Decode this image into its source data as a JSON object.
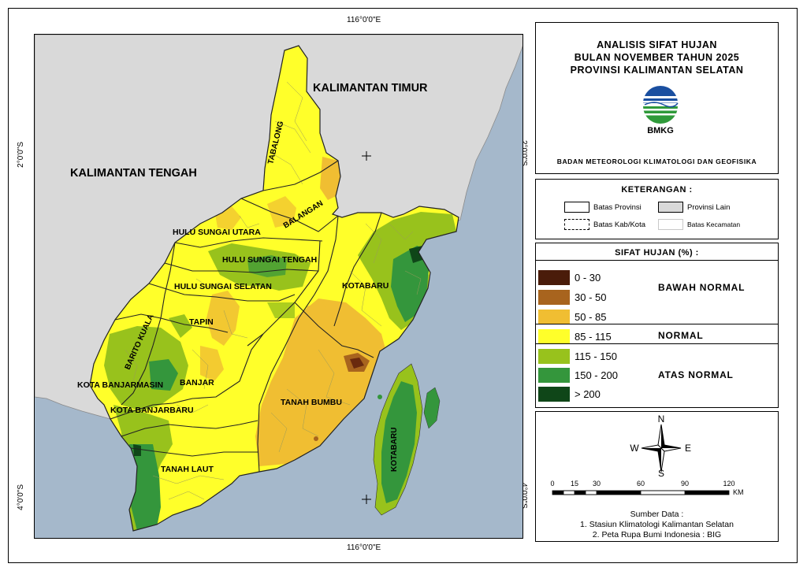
{
  "coords": {
    "top_lon": "116°0'0\"E",
    "bottom_lon": "116°0'0\"E",
    "left_lat_top": "2°0'0\"S",
    "left_lat_bottom": "4°0'0\"S",
    "right_lat_top": "2°0'0\"S",
    "right_lat_bottom": "4°0'0\"S"
  },
  "map": {
    "regions_outside": [
      "KALIMANTAN TIMUR",
      "KALIMANTAN TENGAH"
    ],
    "regencies": {
      "tabalong": "TABALONG",
      "balangan": "BALANGAN",
      "hulu_sungai_utara": "HULU SUNGAI UTARA",
      "hulu_sungai_tengah": "HULU SUNGAI TENGAH",
      "hulu_sungai_selatan": "HULU SUNGAI SELATAN",
      "tapin": "TAPIN",
      "barito_kuala": "BARITO KUALA",
      "kota_banjarmasin": "KOTA BANJARMASIN",
      "banjar": "BANJAR",
      "kota_banjarbaru": "KOTA BANJARBARU",
      "tanah_laut": "TANAH LAUT",
      "tanah_bumbu": "TANAH BUMBU",
      "kotabaru": "KOTABARU",
      "kotabaru_island": "KOTABARU"
    },
    "colors": {
      "sea": "#a5b8cb",
      "other_province": "#d9d9d9"
    }
  },
  "title": {
    "line1": "ANALISIS SIFAT HUJAN",
    "line2": "BULAN NOVEMBER TAHUN 2025",
    "line3": "PROVINSI KALIMANTAN SELATAN",
    "logo_text": "BMKG",
    "agency": "BADAN METEOROLOGI KLIMATOLOGI DAN GEOFISIKA"
  },
  "keterangan": {
    "title": "KETERANGAN :",
    "items": [
      "Batas Provinsi",
      "Provinsi Lain",
      "Batas Kab/Kota",
      "Batas Kecamatan"
    ]
  },
  "sifat": {
    "title": "SIFAT HUJAN (%) :",
    "classes": [
      {
        "label": "0 - 30",
        "color": "#4a1c0a"
      },
      {
        "label": "30 - 50",
        "color": "#a8641e"
      },
      {
        "label": "50 - 85",
        "color": "#f0be32"
      },
      {
        "label": "85 - 115",
        "color": "#ffff2a"
      },
      {
        "label": "115 - 150",
        "color": "#98c21c"
      },
      {
        "label": "150 - 200",
        "color": "#34963c"
      },
      {
        "label": "> 200",
        "color": "#0f4618"
      }
    ],
    "categories": [
      "BAWAH NORMAL",
      "NORMAL",
      "ATAS NORMAL"
    ]
  },
  "compass": {
    "n": "N",
    "s": "S",
    "e": "E",
    "w": "W"
  },
  "scale": {
    "ticks": [
      "0",
      "15",
      "30",
      "60",
      "90",
      "120"
    ],
    "unit": "KM"
  },
  "source": {
    "title": "Sumber Data :",
    "line1": "1. Stasiun Klimatologi Kalimantan Selatan",
    "line2": "2. Peta Rupa Bumi Indonesia : BIG"
  }
}
